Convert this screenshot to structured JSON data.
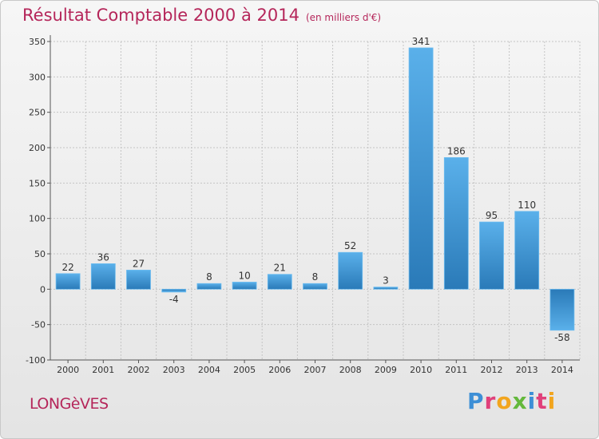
{
  "title": "Résultat Comptable 2000 à 2014",
  "unit_label": "(en milliers d'€)",
  "town": "LONGèVES",
  "brand": "Proxiti",
  "colors": {
    "title": "#b5265a",
    "bar_light": "#5ab0ea",
    "bar_dark": "#2a7ab8",
    "grid": "#c4c4c4"
  },
  "chart_data": {
    "type": "bar",
    "categories": [
      "2000",
      "2001",
      "2002",
      "2003",
      "2004",
      "2005",
      "2006",
      "2007",
      "2008",
      "2009",
      "2010",
      "2011",
      "2012",
      "2013",
      "2014"
    ],
    "values": [
      22,
      36,
      27,
      -4,
      8,
      10,
      21,
      8,
      52,
      3,
      341,
      186,
      95,
      110,
      -58
    ],
    "title": "Résultat Comptable 2000 à 2014",
    "ylim": [
      -100,
      350
    ],
    "yticks": [
      -100,
      -50,
      0,
      50,
      100,
      150,
      200,
      250,
      300,
      350
    ],
    "grid": true
  }
}
